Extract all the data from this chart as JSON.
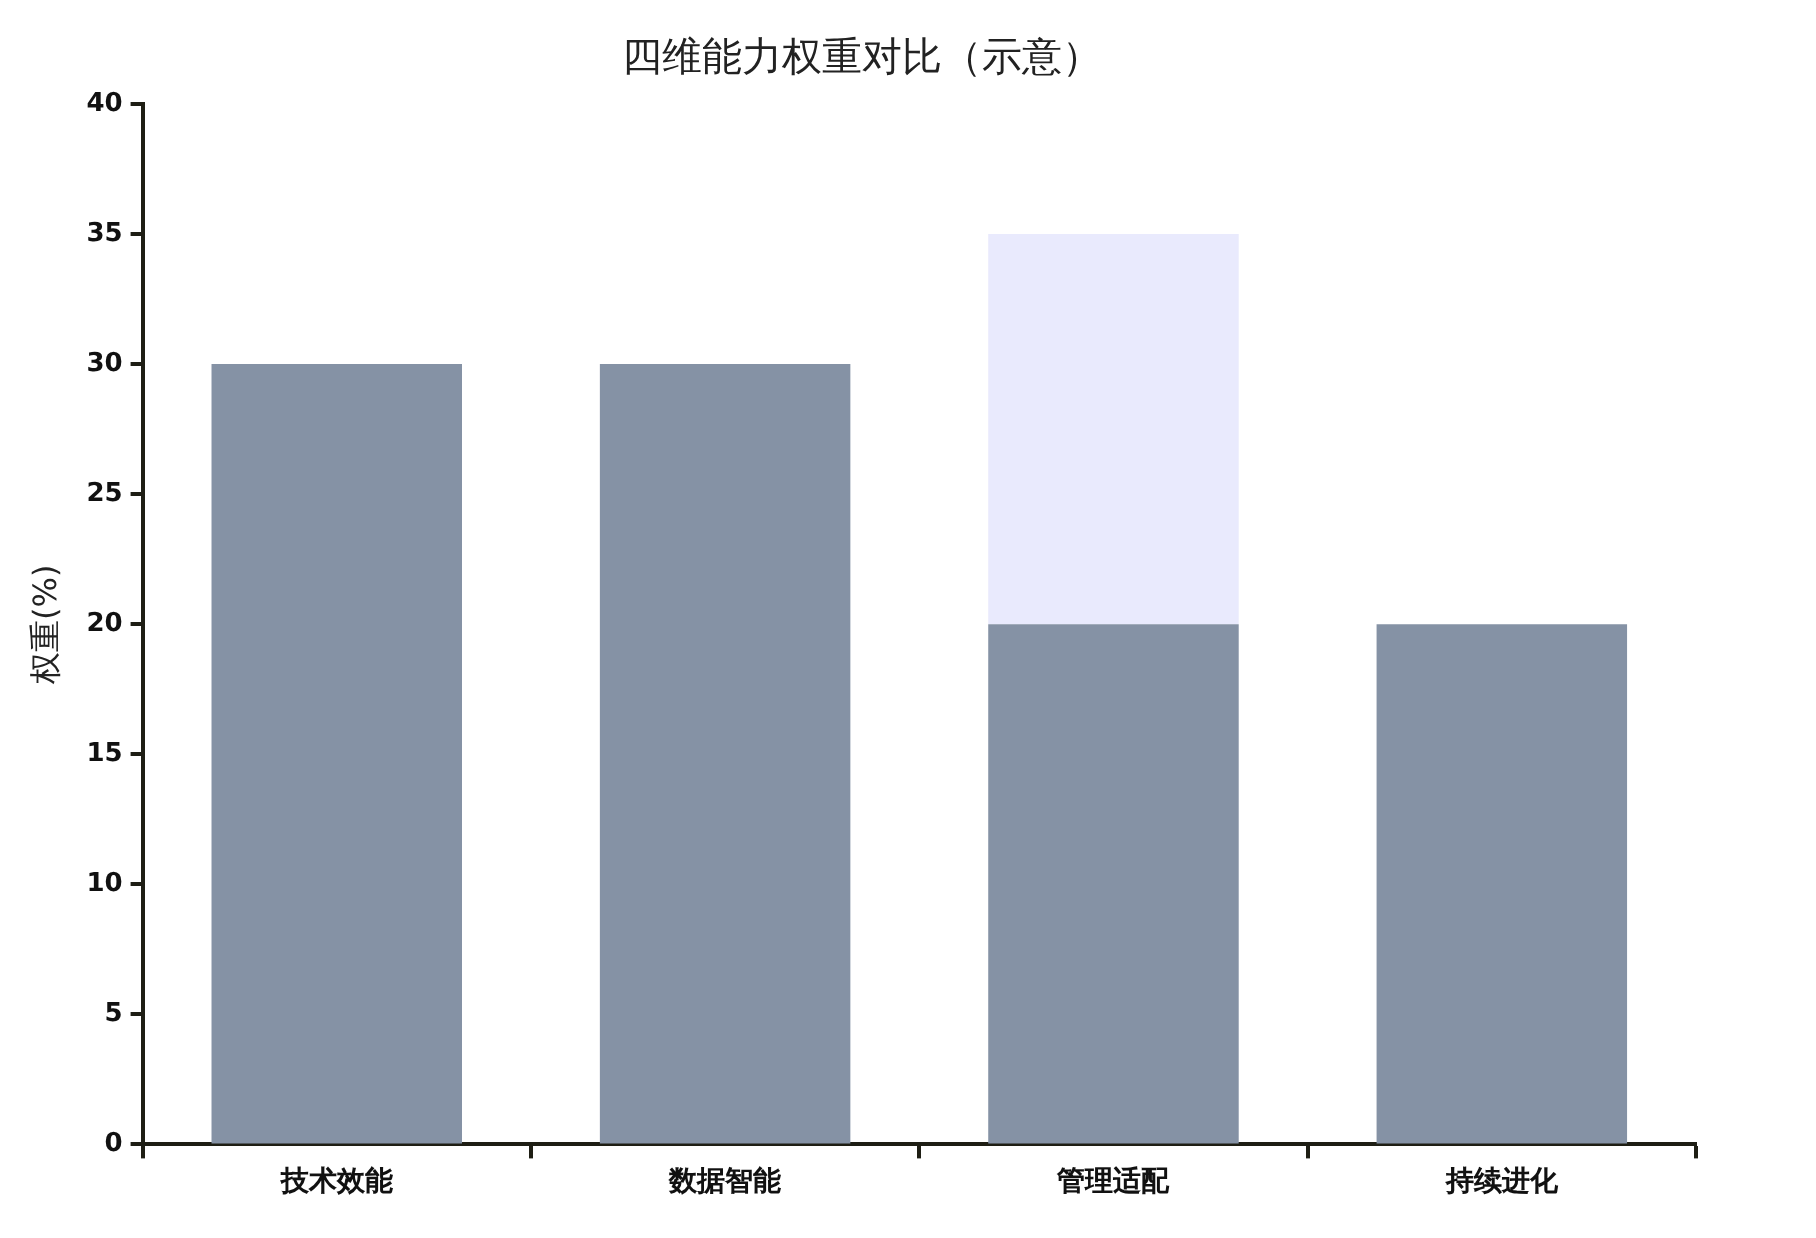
{
  "chart_data": {
    "type": "bar",
    "title": "四维能力权重对比（示意）",
    "ylabel": "权重(%)",
    "categories": [
      "技术效能",
      "数据智能",
      "管理适配",
      "持续进化"
    ],
    "stacked": true,
    "series": [
      {
        "color": "#8592a5",
        "values": [
          30,
          30,
          20,
          20
        ]
      },
      {
        "color": "#e9eafd",
        "values": [
          null,
          null,
          15,
          null
        ]
      }
    ],
    "ylim": [
      0,
      40
    ],
    "yticks": [
      0,
      5,
      10,
      15,
      20,
      25,
      30,
      35,
      40
    ],
    "legend": false
  }
}
